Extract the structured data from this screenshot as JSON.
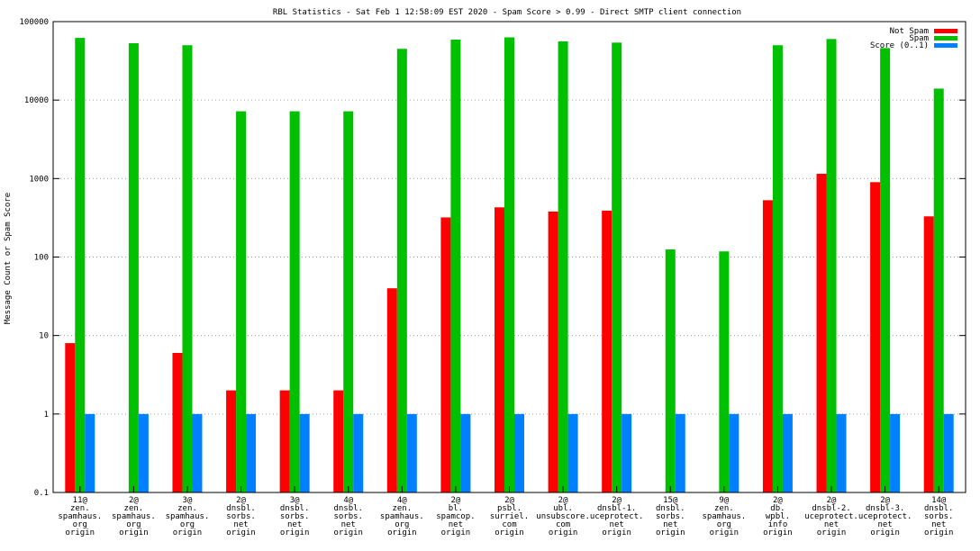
{
  "chart_data": {
    "type": "bar",
    "title": "RBL Statistics - Sat Feb  1 12:58:09 EST 2020 - Spam Score > 0.99 - Direct SMTP client connection",
    "xlabel": "",
    "ylabel": "Message Count or Spam Score",
    "yscale": "log",
    "ylim": [
      0.1,
      100000
    ],
    "yticks": [
      "0.1",
      "1",
      "10",
      "100",
      "1000",
      "10000",
      "100000"
    ],
    "grid": true,
    "legend_position": "top-right",
    "categories": [
      [
        "11@",
        "zen.",
        "spamhaus.",
        "org",
        "origin"
      ],
      [
        "2@",
        "zen.",
        "spamhaus.",
        "org",
        "origin"
      ],
      [
        "3@",
        "zen.",
        "spamhaus.",
        "org",
        "origin"
      ],
      [
        "2@",
        "dnsbl.",
        "sorbs.",
        "net",
        "origin"
      ],
      [
        "3@",
        "dnsbl.",
        "sorbs.",
        "net",
        "origin"
      ],
      [
        "4@",
        "dnsbl.",
        "sorbs.",
        "net",
        "origin"
      ],
      [
        "4@",
        "zen.",
        "spamhaus.",
        "org",
        "origin"
      ],
      [
        "2@",
        "bl.",
        "spamcop.",
        "net",
        "origin"
      ],
      [
        "2@",
        "psbl.",
        "surriel.",
        "com",
        "origin"
      ],
      [
        "2@",
        "ubl.",
        "unsubscore.",
        "com",
        "origin"
      ],
      [
        "2@",
        "dnsbl-1.",
        "uceprotect.",
        "net",
        "origin"
      ],
      [
        "15@",
        "dnsbl.",
        "sorbs.",
        "net",
        "origin"
      ],
      [
        "9@",
        "zen.",
        "spamhaus.",
        "org",
        "origin"
      ],
      [
        "2@",
        "db.",
        "wpbl.",
        "info",
        "origin"
      ],
      [
        "2@",
        "dnsbl-2.",
        "uceprotect.",
        "net",
        "origin"
      ],
      [
        "2@",
        "dnsbl-3.",
        "uceprotect.",
        "net",
        "origin"
      ],
      [
        "14@",
        "dnsbl.",
        "sorbs.",
        "net",
        "origin"
      ]
    ],
    "series": [
      {
        "name": "Not Spam",
        "color": "#ff0000",
        "values": [
          8,
          null,
          6,
          2,
          2,
          2,
          40,
          320,
          430,
          380,
          390,
          null,
          null,
          530,
          1150,
          900,
          330
        ]
      },
      {
        "name": "Spam",
        "color": "#00c000",
        "values": [
          62000,
          53000,
          50000,
          7200,
          7200,
          7200,
          45000,
          59000,
          63000,
          56000,
          54000,
          125,
          118,
          50000,
          60000,
          46000,
          14000
        ]
      },
      {
        "name": "Score (0..1)",
        "color": "#0080ff",
        "values": [
          1,
          1,
          1,
          1,
          1,
          1,
          1,
          1,
          1,
          1,
          1,
          1,
          1,
          1,
          1,
          1,
          1
        ]
      }
    ]
  }
}
